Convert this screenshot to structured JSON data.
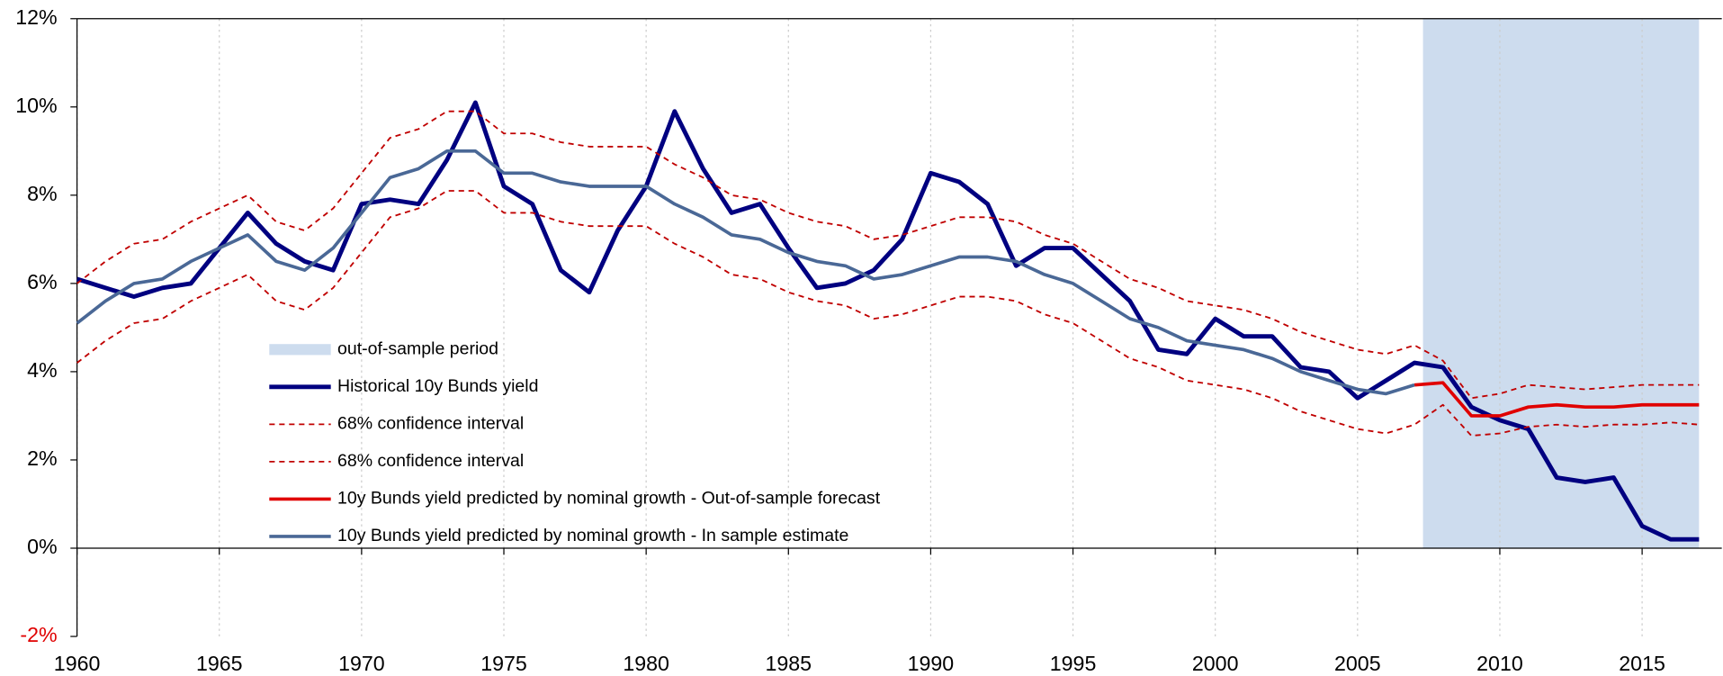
{
  "chart_data": {
    "type": "line",
    "x": [
      1960,
      1961,
      1962,
      1963,
      1964,
      1965,
      1966,
      1967,
      1968,
      1969,
      1970,
      1971,
      1972,
      1973,
      1974,
      1975,
      1976,
      1977,
      1978,
      1979,
      1980,
      1981,
      1982,
      1983,
      1984,
      1985,
      1986,
      1987,
      1988,
      1989,
      1990,
      1991,
      1992,
      1993,
      1994,
      1995,
      1996,
      1997,
      1998,
      1999,
      2000,
      2001,
      2002,
      2003,
      2004,
      2005,
      2006,
      2007,
      2008,
      2009,
      2010,
      2011,
      2012,
      2013,
      2014,
      2015,
      2016,
      2017
    ],
    "xlim": [
      1960,
      2017.8
    ],
    "xticks": [
      1960,
      1965,
      1970,
      1975,
      1980,
      1985,
      1990,
      1995,
      2000,
      2005,
      2010,
      2015
    ],
    "ylim": [
      -2,
      12
    ],
    "yticks": [
      {
        "value": -2,
        "label": "-2%"
      },
      {
        "value": 0,
        "label": "0%"
      },
      {
        "value": 2,
        "label": "2%"
      },
      {
        "value": 4,
        "label": "4%"
      },
      {
        "value": 6,
        "label": "6%"
      },
      {
        "value": 8,
        "label": "8%"
      },
      {
        "value": 10,
        "label": "10%"
      },
      {
        "value": 12,
        "label": "12%"
      }
    ],
    "grid": "x",
    "shade": {
      "name": "out-of-sample period",
      "from": 2007.3,
      "to": 2017,
      "color": "#cddcee"
    },
    "series": [
      {
        "name": "Historical 10y Bunds yield",
        "color": "#000080",
        "style": "solid",
        "width": 4,
        "values": [
          6.1,
          5.9,
          5.7,
          5.9,
          6.0,
          6.8,
          7.6,
          6.9,
          6.5,
          6.3,
          7.8,
          7.9,
          7.8,
          8.8,
          10.1,
          8.2,
          7.8,
          6.3,
          5.8,
          7.2,
          8.2,
          9.9,
          8.6,
          7.6,
          7.8,
          6.8,
          5.9,
          6.0,
          6.3,
          7.0,
          8.5,
          8.3,
          7.8,
          6.4,
          6.8,
          6.8,
          6.2,
          5.6,
          4.5,
          4.4,
          5.2,
          4.8,
          4.8,
          4.1,
          4.0,
          3.4,
          3.8,
          4.2,
          4.1,
          3.2,
          2.9,
          2.7,
          1.6,
          1.5,
          1.6,
          0.5,
          0.2,
          0.2
        ]
      },
      {
        "name": "68% confidence interval",
        "color": "#c00000",
        "style": "dashed",
        "width": 1.5,
        "values": [
          6.0,
          6.5,
          6.9,
          7.0,
          7.4,
          7.7,
          8.0,
          7.4,
          7.2,
          7.7,
          8.5,
          9.3,
          9.5,
          9.9,
          9.9,
          9.4,
          9.4,
          9.2,
          9.1,
          9.1,
          9.1,
          8.7,
          8.4,
          8.0,
          7.9,
          7.6,
          7.4,
          7.3,
          7.0,
          7.1,
          7.3,
          7.5,
          7.5,
          7.4,
          7.1,
          6.9,
          6.5,
          6.1,
          5.9,
          5.6,
          5.5,
          5.4,
          5.2,
          4.9,
          4.7,
          4.5,
          4.4,
          4.6,
          4.25,
          3.4,
          3.5,
          3.7,
          3.65,
          3.6,
          3.65,
          3.7,
          3.7,
          3.7
        ]
      },
      {
        "name": "68% confidence interval",
        "color": "#c00000",
        "style": "dashed",
        "width": 1.5,
        "values": [
          4.2,
          4.7,
          5.1,
          5.2,
          5.6,
          5.9,
          6.2,
          5.6,
          5.4,
          5.9,
          6.7,
          7.5,
          7.7,
          8.1,
          8.1,
          7.6,
          7.6,
          7.4,
          7.3,
          7.3,
          7.3,
          6.9,
          6.6,
          6.2,
          6.1,
          5.8,
          5.6,
          5.5,
          5.2,
          5.3,
          5.5,
          5.7,
          5.7,
          5.6,
          5.3,
          5.1,
          4.7,
          4.3,
          4.1,
          3.8,
          3.7,
          3.6,
          3.4,
          3.1,
          2.9,
          2.7,
          2.6,
          2.8,
          3.25,
          2.55,
          2.6,
          2.75,
          2.8,
          2.75,
          2.8,
          2.8,
          2.85,
          2.8
        ]
      },
      {
        "name": "10y Bunds yield predicted by nominal growth - Out-of-sample forecast",
        "color": "#e00000",
        "style": "solid",
        "width": 3,
        "values": [
          null,
          null,
          null,
          null,
          null,
          null,
          null,
          null,
          null,
          null,
          null,
          null,
          null,
          null,
          null,
          null,
          null,
          null,
          null,
          null,
          null,
          null,
          null,
          null,
          null,
          null,
          null,
          null,
          null,
          null,
          null,
          null,
          null,
          null,
          null,
          null,
          null,
          null,
          null,
          null,
          null,
          null,
          null,
          null,
          null,
          null,
          null,
          3.7,
          3.75,
          3.0,
          3.0,
          3.2,
          3.25,
          3.2,
          3.2,
          3.25,
          3.25,
          3.25
        ]
      },
      {
        "name": "10y Bunds yield predicted by nominal growth - In sample estimate",
        "color": "#4a6896",
        "style": "solid",
        "width": 3,
        "values": [
          5.1,
          5.6,
          6.0,
          6.1,
          6.5,
          6.8,
          7.1,
          6.5,
          6.3,
          6.8,
          7.6,
          8.4,
          8.6,
          9.0,
          9.0,
          8.5,
          8.5,
          8.3,
          8.2,
          8.2,
          8.2,
          7.8,
          7.5,
          7.1,
          7.0,
          6.7,
          6.5,
          6.4,
          6.1,
          6.2,
          6.4,
          6.6,
          6.6,
          6.5,
          6.2,
          6.0,
          5.6,
          5.2,
          5.0,
          4.7,
          4.6,
          4.5,
          4.3,
          4.0,
          3.8,
          3.6,
          3.5,
          3.7,
          null,
          null,
          null,
          null,
          null,
          null,
          null,
          null,
          null,
          null
        ]
      }
    ]
  }
}
